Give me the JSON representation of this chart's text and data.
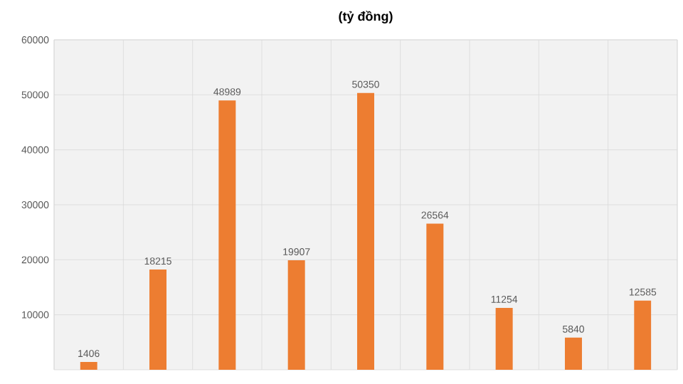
{
  "chart_data": {
    "type": "bar",
    "title": "(tỷ đồng)",
    "categories": [
      null,
      null,
      null,
      null,
      null,
      null,
      null,
      null,
      null
    ],
    "values": [
      1406,
      18215,
      48989,
      19907,
      50350,
      26564,
      11254,
      5840,
      12585
    ],
    "color": "#ed7d31",
    "ylim": [
      0,
      60000
    ],
    "yticks": [
      10000,
      20000,
      30000,
      40000,
      50000,
      60000
    ],
    "grid": true,
    "data_labels": true
  }
}
